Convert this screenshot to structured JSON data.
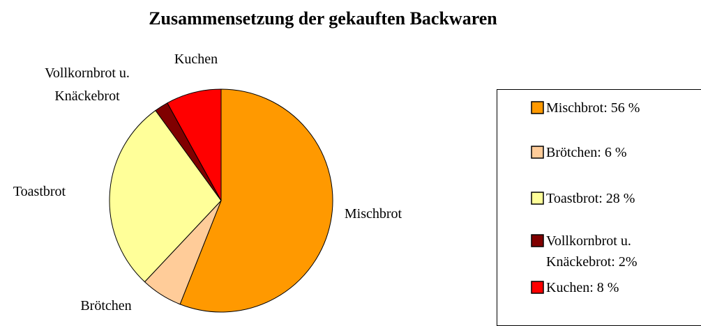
{
  "chart_data": {
    "type": "pie",
    "title": "Zusammensetzung der gekauften Backwaren",
    "categories": [
      "Mischbrot",
      "Brötchen",
      "Toastbrot",
      "Vollkornbrot u. Knäckebrot",
      "Kuchen"
    ],
    "values": [
      56,
      6,
      28,
      2,
      8
    ],
    "value_labels": [
      "Mischbrot: 56 %",
      "Brötchen: 6 %",
      "Toastbrot: 28 %",
      "Vollkornbrot u. Knäckebrot: 2%",
      "Kuchen: 8 %"
    ],
    "colors": [
      "#ff9900",
      "#ffcc99",
      "#ffff99",
      "#800000",
      "#ff0000"
    ],
    "legend": "right"
  }
}
